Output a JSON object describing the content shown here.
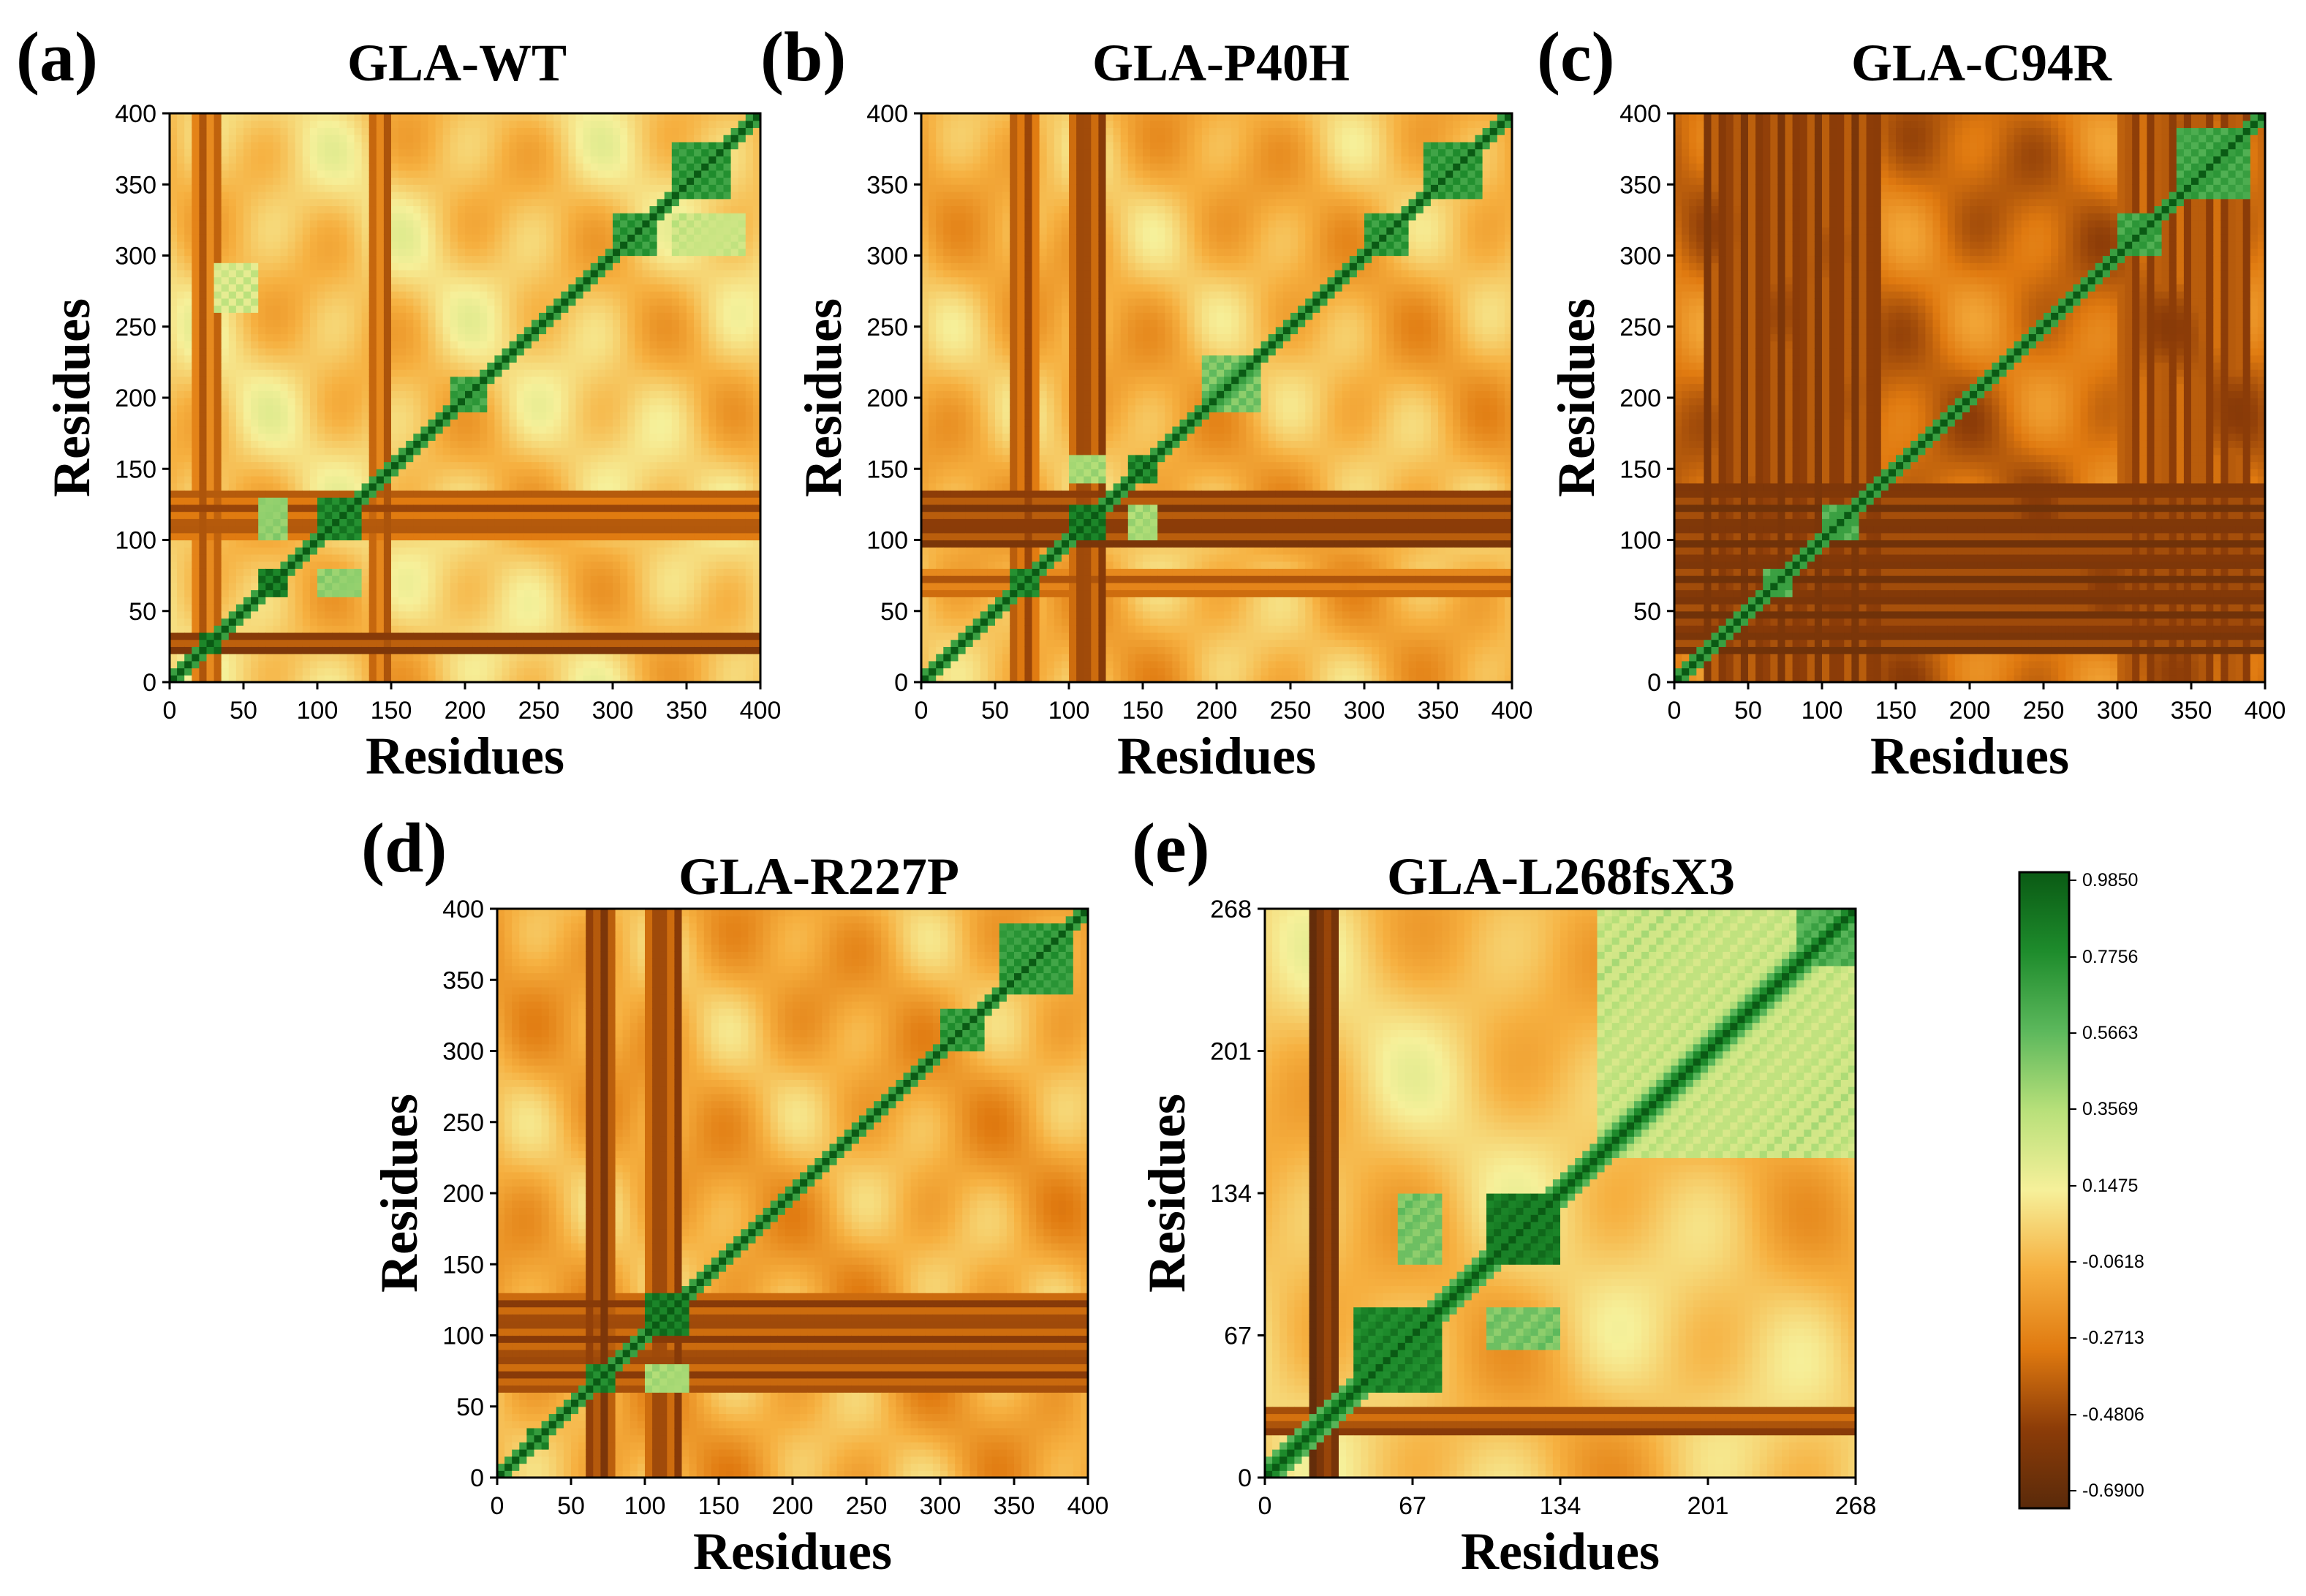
{
  "figure": {
    "colormap": {
      "stops": [
        {
          "value": -0.69,
          "color": "#5a2a0a"
        },
        {
          "value": -0.4806,
          "color": "#8c3c08"
        },
        {
          "value": -0.2713,
          "color": "#e07a10"
        },
        {
          "value": -0.0618,
          "color": "#f6b040"
        },
        {
          "value": 0.1475,
          "color": "#f6f09a"
        },
        {
          "value": 0.3569,
          "color": "#b8e07a"
        },
        {
          "value": 0.5663,
          "color": "#5cb85c"
        },
        {
          "value": 0.7756,
          "color": "#1e8c2c"
        },
        {
          "value": 0.985,
          "color": "#0a5a14"
        }
      ],
      "tick_labels": [
        "0.9850",
        "0.7756",
        "0.5663",
        "0.3569",
        "0.1475",
        "-0.0618",
        "-0.2713",
        "-0.4806",
        "-0.6900"
      ]
    }
  },
  "chart_data": [
    {
      "type": "heatmap",
      "panel_label": "(a)",
      "title": "GLA-WT",
      "xlabel": "Residues",
      "ylabel": "Residues",
      "xlim": [
        0,
        400
      ],
      "ylim": [
        0,
        400
      ],
      "xticks": [
        0,
        50,
        100,
        150,
        200,
        250,
        300,
        350,
        400
      ],
      "yticks": [
        0,
        50,
        100,
        150,
        200,
        250,
        300,
        350,
        400
      ],
      "base_correlation": 0.02,
      "positive_blocks": [
        {
          "x": [
            20,
            35
          ],
          "y": [
            20,
            35
          ],
          "v": 0.95
        },
        {
          "x": [
            60,
            80
          ],
          "y": [
            60,
            80
          ],
          "v": 0.95
        },
        {
          "x": [
            100,
            130
          ],
          "y": [
            100,
            130
          ],
          "v": 0.9
        },
        {
          "x": [
            300,
            330
          ],
          "y": [
            300,
            330
          ],
          "v": 0.8
        },
        {
          "x": [
            340,
            380
          ],
          "y": [
            340,
            380
          ],
          "v": 0.8
        },
        {
          "x": [
            60,
            80
          ],
          "y": [
            100,
            130
          ],
          "v": 0.55
        },
        {
          "x": [
            100,
            130
          ],
          "y": [
            60,
            80
          ],
          "v": 0.55
        },
        {
          "x": [
            190,
            215
          ],
          "y": [
            190,
            215
          ],
          "v": 0.75
        },
        {
          "x": [
            30,
            60
          ],
          "y": [
            260,
            295
          ],
          "v": 0.35
        },
        {
          "x": [
            340,
            390
          ],
          "y": [
            300,
            330
          ],
          "v": 0.4
        }
      ],
      "negative_bands": [
        {
          "axis": "y",
          "range": [
            20,
            35
          ],
          "v": -0.45
        },
        {
          "axis": "y",
          "range": [
            100,
            135
          ],
          "v": -0.35
        },
        {
          "axis": "x",
          "range": [
            15,
            35
          ],
          "v": -0.3
        },
        {
          "axis": "x",
          "range": [
            135,
            150
          ],
          "v": -0.3
        }
      ]
    },
    {
      "type": "heatmap",
      "panel_label": "(b)",
      "title": "GLA-P40H",
      "xlabel": "Residues",
      "ylabel": "Residues",
      "xlim": [
        0,
        400
      ],
      "ylim": [
        0,
        400
      ],
      "xticks": [
        0,
        50,
        100,
        150,
        200,
        250,
        300,
        350,
        400
      ],
      "yticks": [
        0,
        50,
        100,
        150,
        200,
        250,
        300,
        350,
        400
      ],
      "base_correlation": -0.05,
      "positive_blocks": [
        {
          "x": [
            60,
            80
          ],
          "y": [
            60,
            80
          ],
          "v": 0.9
        },
        {
          "x": [
            100,
            125
          ],
          "y": [
            100,
            125
          ],
          "v": 0.95
        },
        {
          "x": [
            140,
            160
          ],
          "y": [
            140,
            160
          ],
          "v": 0.9
        },
        {
          "x": [
            190,
            230
          ],
          "y": [
            190,
            230
          ],
          "v": 0.6
        },
        {
          "x": [
            300,
            330
          ],
          "y": [
            300,
            330
          ],
          "v": 0.8
        },
        {
          "x": [
            340,
            380
          ],
          "y": [
            340,
            380
          ],
          "v": 0.8
        },
        {
          "x": [
            140,
            160
          ],
          "y": [
            100,
            125
          ],
          "v": 0.5
        },
        {
          "x": [
            100,
            125
          ],
          "y": [
            140,
            160
          ],
          "v": 0.5
        }
      ],
      "negative_bands": [
        {
          "axis": "y",
          "range": [
            95,
            135
          ],
          "v": -0.45
        },
        {
          "axis": "y",
          "range": [
            60,
            80
          ],
          "v": -0.3
        },
        {
          "axis": "x",
          "range": [
            60,
            80
          ],
          "v": -0.35
        },
        {
          "axis": "x",
          "range": [
            100,
            125
          ],
          "v": -0.4
        }
      ]
    },
    {
      "type": "heatmap",
      "panel_label": "(c)",
      "title": "GLA-C94R",
      "xlabel": "Residues",
      "ylabel": "Residues",
      "xlim": [
        0,
        400
      ],
      "ylim": [
        0,
        400
      ],
      "xticks": [
        0,
        50,
        100,
        150,
        200,
        250,
        300,
        350,
        400
      ],
      "yticks": [
        0,
        50,
        100,
        150,
        200,
        250,
        300,
        350,
        400
      ],
      "base_correlation": -0.3,
      "positive_blocks": [
        {
          "x": [
            60,
            80
          ],
          "y": [
            60,
            80
          ],
          "v": 0.7
        },
        {
          "x": [
            100,
            125
          ],
          "y": [
            100,
            125
          ],
          "v": 0.7
        },
        {
          "x": [
            300,
            330
          ],
          "y": [
            300,
            330
          ],
          "v": 0.75
        },
        {
          "x": [
            340,
            390
          ],
          "y": [
            340,
            390
          ],
          "v": 0.75
        }
      ],
      "negative_bands": [
        {
          "axis": "y",
          "range": [
            20,
            140
          ],
          "v": -0.5
        },
        {
          "axis": "x",
          "range": [
            20,
            140
          ],
          "v": -0.45
        },
        {
          "axis": "x",
          "range": [
            300,
            390
          ],
          "v": -0.4
        }
      ]
    },
    {
      "type": "heatmap",
      "panel_label": "(d)",
      "title": "GLA-R227P",
      "xlabel": "Residues",
      "ylabel": "Residues",
      "xlim": [
        0,
        400
      ],
      "ylim": [
        0,
        400
      ],
      "xticks": [
        0,
        50,
        100,
        150,
        200,
        250,
        300,
        350,
        400
      ],
      "yticks": [
        0,
        50,
        100,
        150,
        200,
        250,
        300,
        350,
        400
      ],
      "base_correlation": -0.08,
      "positive_blocks": [
        {
          "x": [
            60,
            80
          ],
          "y": [
            60,
            80
          ],
          "v": 0.9
        },
        {
          "x": [
            100,
            130
          ],
          "y": [
            100,
            130
          ],
          "v": 0.95
        },
        {
          "x": [
            20,
            35
          ],
          "y": [
            20,
            35
          ],
          "v": 0.85
        },
        {
          "x": [
            300,
            330
          ],
          "y": [
            300,
            330
          ],
          "v": 0.8
        },
        {
          "x": [
            340,
            390
          ],
          "y": [
            340,
            390
          ],
          "v": 0.8
        },
        {
          "x": [
            100,
            130
          ],
          "y": [
            60,
            80
          ],
          "v": 0.5
        }
      ],
      "negative_bands": [
        {
          "axis": "y",
          "range": [
            60,
            130
          ],
          "v": -0.4
        },
        {
          "axis": "x",
          "range": [
            60,
            80
          ],
          "v": -0.45
        },
        {
          "axis": "x",
          "range": [
            100,
            125
          ],
          "v": -0.4
        }
      ]
    },
    {
      "type": "heatmap",
      "panel_label": "(e)",
      "title": "GLA-L268fsX3",
      "xlabel": "Residues",
      "ylabel": "Residues",
      "xlim": [
        0,
        268
      ],
      "ylim": [
        0,
        268
      ],
      "xticks": [
        0,
        67,
        134,
        201,
        268
      ],
      "yticks": [
        0,
        67,
        134,
        201,
        268
      ],
      "base_correlation": 0.0,
      "positive_blocks": [
        {
          "x": [
            40,
            80
          ],
          "y": [
            40,
            80
          ],
          "v": 0.9
        },
        {
          "x": [
            100,
            134
          ],
          "y": [
            100,
            134
          ],
          "v": 0.95
        },
        {
          "x": [
            60,
            80
          ],
          "y": [
            100,
            134
          ],
          "v": 0.6
        },
        {
          "x": [
            100,
            134
          ],
          "y": [
            60,
            80
          ],
          "v": 0.6
        },
        {
          "x": [
            150,
            268
          ],
          "y": [
            150,
            268
          ],
          "v": 0.4
        },
        {
          "x": [
            240,
            268
          ],
          "y": [
            240,
            268
          ],
          "v": 0.7
        }
      ],
      "negative_bands": [
        {
          "axis": "x",
          "range": [
            20,
            35
          ],
          "v": -0.55
        },
        {
          "axis": "y",
          "range": [
            20,
            35
          ],
          "v": -0.4
        }
      ]
    }
  ]
}
